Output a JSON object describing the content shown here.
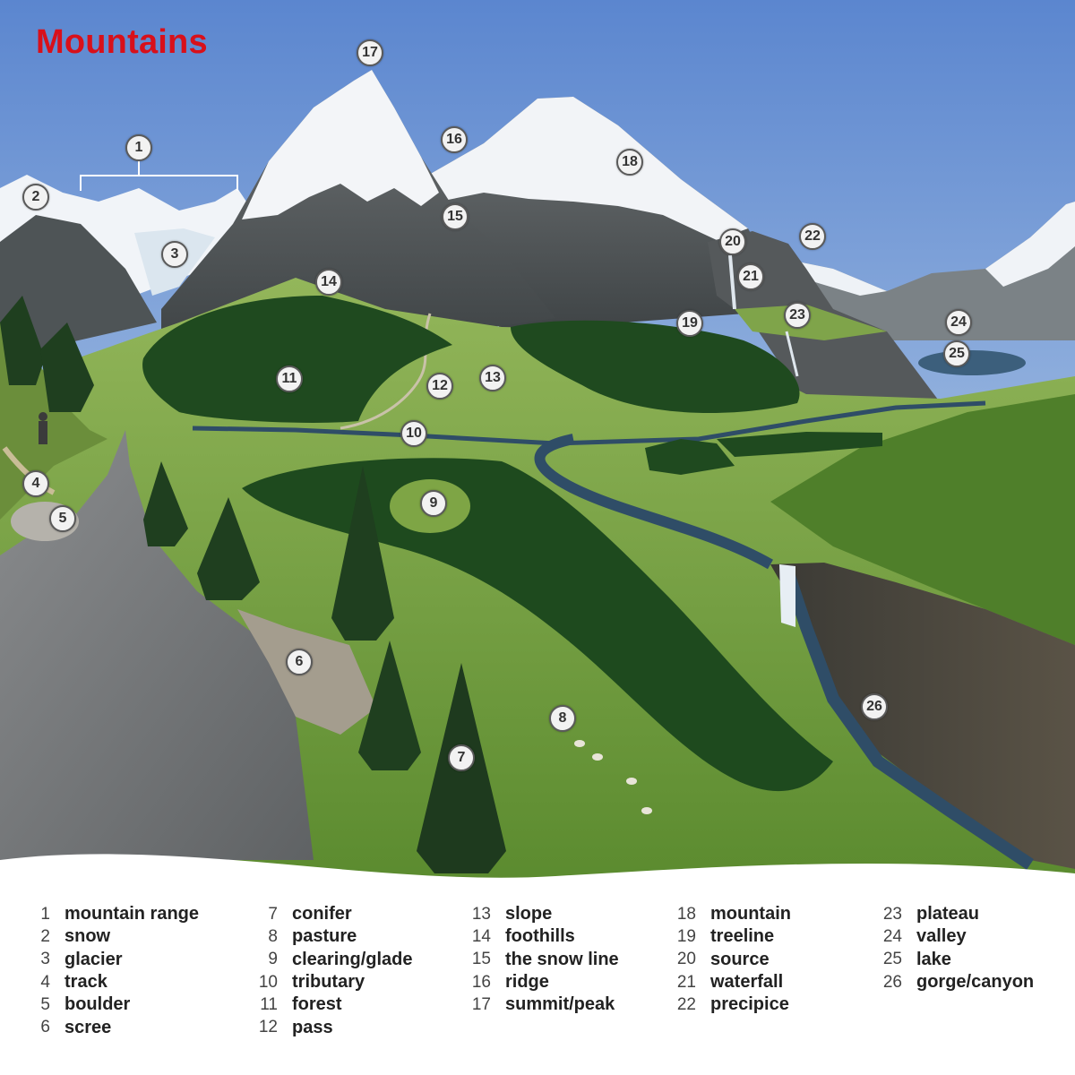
{
  "title": "Mountains",
  "colors": {
    "title": "#d8101a",
    "sky_top": "#5b86cf",
    "sky_bottom": "#e6eef6",
    "grass": "#6c9a3a",
    "forest": "#1f4a1f",
    "river": "#2f4d67",
    "rock": "#7c7e80",
    "snow": "#f3f5f8"
  },
  "markers": [
    {
      "id": "m1",
      "num": "1"
    },
    {
      "id": "m2",
      "num": "2"
    },
    {
      "id": "m3",
      "num": "3"
    },
    {
      "id": "m4",
      "num": "4"
    },
    {
      "id": "m5",
      "num": "5"
    },
    {
      "id": "m6",
      "num": "6"
    },
    {
      "id": "m7",
      "num": "7"
    },
    {
      "id": "m8",
      "num": "8"
    },
    {
      "id": "m9",
      "num": "9"
    },
    {
      "id": "m10",
      "num": "10"
    },
    {
      "id": "m11",
      "num": "11"
    },
    {
      "id": "m12",
      "num": "12"
    },
    {
      "id": "m13",
      "num": "13"
    },
    {
      "id": "m14",
      "num": "14"
    },
    {
      "id": "m15",
      "num": "15"
    },
    {
      "id": "m16",
      "num": "16"
    },
    {
      "id": "m17",
      "num": "17"
    },
    {
      "id": "m18",
      "num": "18"
    },
    {
      "id": "m19",
      "num": "19"
    },
    {
      "id": "m20",
      "num": "20"
    },
    {
      "id": "m21",
      "num": "21"
    },
    {
      "id": "m22",
      "num": "22"
    },
    {
      "id": "m23",
      "num": "23"
    },
    {
      "id": "m24",
      "num": "24"
    },
    {
      "id": "m25",
      "num": "25"
    },
    {
      "id": "m26",
      "num": "26"
    }
  ],
  "legend": [
    [
      {
        "num": "1",
        "label": "mountain range"
      },
      {
        "num": "2",
        "label": "snow"
      },
      {
        "num": "3",
        "label": "glacier"
      },
      {
        "num": "4",
        "label": "track"
      },
      {
        "num": "5",
        "label": "boulder"
      },
      {
        "num": "6",
        "label": "scree"
      }
    ],
    [
      {
        "num": "7",
        "label": "conifer"
      },
      {
        "num": "8",
        "label": "pasture"
      },
      {
        "num": "9",
        "label": "clearing/glade"
      },
      {
        "num": "10",
        "label": "tributary"
      },
      {
        "num": "11",
        "label": "forest"
      },
      {
        "num": "12",
        "label": "pass"
      }
    ],
    [
      {
        "num": "13",
        "label": "slope"
      },
      {
        "num": "14",
        "label": "foothills"
      },
      {
        "num": "15",
        "label": "the snow line"
      },
      {
        "num": "16",
        "label": "ridge"
      },
      {
        "num": "17",
        "label": "summit/peak"
      }
    ],
    [
      {
        "num": "18",
        "label": "mountain"
      },
      {
        "num": "19",
        "label": "treeline"
      },
      {
        "num": "20",
        "label": "source"
      },
      {
        "num": "21",
        "label": "waterfall"
      },
      {
        "num": "22",
        "label": "precipice"
      }
    ],
    [
      {
        "num": "23",
        "label": "plateau"
      },
      {
        "num": "24",
        "label": "valley"
      },
      {
        "num": "25",
        "label": "lake"
      },
      {
        "num": "26",
        "label": "gorge/canyon"
      }
    ]
  ]
}
